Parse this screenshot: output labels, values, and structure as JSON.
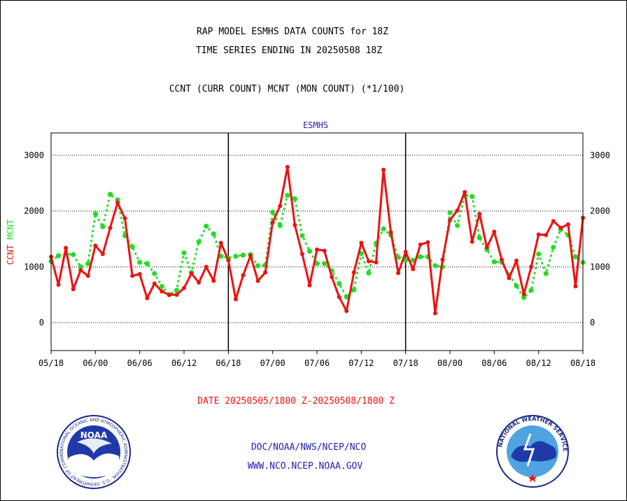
{
  "header": {
    "title_line1": "RAP MODEL ESMHS DATA COUNTS for 18Z",
    "title_line2": "TIME SERIES ENDING IN 20250508 18Z",
    "subtitle": "CCNT (CURR COUNT) MCNT (MON COUNT) (*1/100)"
  },
  "footer": {
    "date_range": "DATE 20250505/1800 Z-20250508/1800 Z",
    "org": "DOC/NOAA/NWS/NCEP/NCO",
    "url": "WWW.NCO.NCEP.NOAA.GOV",
    "noaa_logo_text": "NOAA",
    "noaa_ring_text": "NATIONAL OCEANIC AND ATMOSPHERIC ADMINISTRATION · U.S. DEPARTMENT OF COMMERCE",
    "nws_ring_text": "NATIONAL WEATHER SERVICE"
  },
  "colors": {
    "ccnt": "#ee1111",
    "mcnt": "#22dd22",
    "title_blue": "#2222bb",
    "date_red": "#ee1111"
  },
  "chart_data": {
    "type": "line",
    "title": "ESMHS",
    "ylabel_left": [
      "CCNT",
      "MCNT"
    ],
    "ylim": [
      -500,
      3400
    ],
    "yticks": [
      0,
      1000,
      2000,
      3000
    ],
    "x_tick_labels": [
      "05/18",
      "06/00",
      "06/06",
      "06/12",
      "06/18",
      "07/00",
      "07/06",
      "07/12",
      "07/18",
      "08/00",
      "08/06",
      "08/12",
      "08/18"
    ],
    "day_dividers_hours": [
      24,
      48
    ],
    "x_hours_range": [
      0,
      72
    ],
    "grid": "horizontal-dotted",
    "series": [
      {
        "name": "CCNT",
        "color": "#ee1111",
        "x_hours": [
          0,
          1,
          2,
          3,
          4,
          5,
          6,
          7,
          8,
          9,
          10,
          11,
          12,
          13,
          14,
          15,
          16,
          17,
          18,
          19,
          20,
          21,
          22,
          23,
          24,
          25,
          26,
          27,
          28,
          29,
          30,
          31,
          32,
          33,
          34,
          35,
          36,
          37,
          38,
          39,
          40,
          41,
          42,
          43,
          44,
          45,
          46,
          47,
          48,
          49,
          50,
          51,
          52,
          53,
          54,
          55,
          56,
          57,
          58,
          59,
          60,
          61,
          62,
          63,
          64,
          65,
          66,
          67,
          68,
          69,
          70,
          71,
          72
        ],
        "values": [
          1180,
          680,
          1340,
          600,
          940,
          840,
          1380,
          1230,
          1700,
          2150,
          1870,
          840,
          870,
          440,
          700,
          560,
          500,
          500,
          620,
          880,
          720,
          1000,
          750,
          1430,
          1120,
          420,
          850,
          1200,
          750,
          900,
          1800,
          2090,
          2790,
          1750,
          1230,
          670,
          1310,
          1290,
          820,
          460,
          210,
          900,
          1430,
          1100,
          1080,
          2740,
          1620,
          890,
          1270,
          960,
          1400,
          1440,
          170,
          1130,
          1840,
          2010,
          2340,
          1450,
          1950,
          1350,
          1630,
          1130,
          800,
          1110,
          510,
          1000,
          1580,
          1570,
          1820,
          1700,
          1760,
          650,
          1880
        ]
      },
      {
        "name": "MCNT",
        "color": "#22dd22",
        "x_hours": [
          0,
          1,
          2,
          3,
          4,
          5,
          6,
          7,
          8,
          9,
          10,
          11,
          12,
          13,
          14,
          15,
          16,
          17,
          18,
          19,
          20,
          21,
          22,
          23,
          24,
          25,
          26,
          27,
          28,
          29,
          30,
          31,
          32,
          33,
          34,
          35,
          36,
          37,
          38,
          39,
          40,
          41,
          42,
          43,
          44,
          45,
          46,
          47,
          48,
          49,
          50,
          51,
          52,
          53,
          54,
          55,
          56,
          57,
          58,
          59,
          60,
          61,
          62,
          63,
          64,
          65,
          66,
          67,
          68,
          69,
          70,
          71,
          72
        ],
        "values": [
          1100,
          1200,
          1230,
          1220,
          1000,
          1060,
          1950,
          1720,
          2300,
          2200,
          1560,
          1360,
          1080,
          1060,
          880,
          650,
          500,
          580,
          1250,
          900,
          1450,
          1730,
          1590,
          1190,
          1160,
          1190,
          1210,
          1220,
          1020,
          1030,
          1980,
          1740,
          2280,
          2220,
          1560,
          1280,
          1060,
          1060,
          930,
          700,
          460,
          590,
          1240,
          890,
          1420,
          1680,
          1570,
          1170,
          1120,
          1120,
          1180,
          1180,
          1020,
          1000,
          1970,
          1740,
          2290,
          2260,
          1520,
          1310,
          1090,
          1080,
          860,
          660,
          450,
          580,
          1230,
          880,
          1350,
          1670,
          1570,
          1180,
          1080
        ]
      }
    ]
  }
}
